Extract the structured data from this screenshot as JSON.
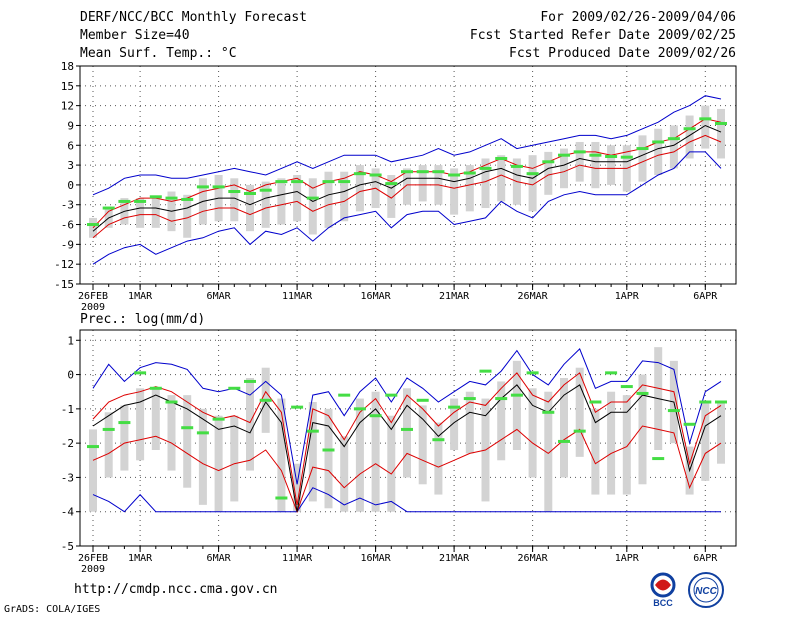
{
  "header": {
    "title": "DERF/NCC/BCC Monthly Forecast",
    "member": "Member Size=40",
    "variable": "Mean Surf. Temp.: °C",
    "period": "For 2009/02/26-2009/04/06",
    "refer": "Fcst Started Refer Date 2009/02/25",
    "produced": "Fcst Produced Date 2009/02/26"
  },
  "footer": {
    "url": "http://cmdp.ncc.cma.gov.cn",
    "grads": "GrADS: COLA/IGES",
    "logo_bcc": "BCC",
    "logo_ncc": "NCC"
  },
  "colors": {
    "max_line": "#0000cc",
    "min_line": "#0000cc",
    "upper_line": "#dd0000",
    "lower_line": "#dd0000",
    "mean_line": "#000000",
    "box": "#d3d3d3",
    "obs": "#44dd44",
    "grid": "#555555"
  },
  "chart_data": [
    {
      "type": "line",
      "title": "Mean Surf. Temp.: °C",
      "ylim": [
        -15,
        18
      ],
      "yticks": [
        -15,
        -12,
        -9,
        -6,
        -3,
        0,
        3,
        6,
        9,
        12,
        15,
        18
      ],
      "xticks": [
        {
          "day": 0,
          "label": "26FEB",
          "sub": "2009"
        },
        {
          "day": 3,
          "label": "1MAR"
        },
        {
          "day": 8,
          "label": "6MAR"
        },
        {
          "day": 13,
          "label": "11MAR"
        },
        {
          "day": 18,
          "label": "16MAR"
        },
        {
          "day": 23,
          "label": "21MAR"
        },
        {
          "day": 28,
          "label": "26MAR"
        },
        {
          "day": 34,
          "label": "1APR"
        },
        {
          "day": 39,
          "label": "6APR"
        }
      ],
      "series": {
        "max": [
          -1.5,
          -0.5,
          1.0,
          1.5,
          1.5,
          1.0,
          1.0,
          1.5,
          2.0,
          2.5,
          2.0,
          1.5,
          2.5,
          3.5,
          2.5,
          3.5,
          4.5,
          4.5,
          4.5,
          3.5,
          4.0,
          4.5,
          5.5,
          4.5,
          5.0,
          6.0,
          7.0,
          5.5,
          6.0,
          6.5,
          7.0,
          7.5,
          7.5,
          7.0,
          7.5,
          8.5,
          9.5,
          11.0,
          12.0,
          13.5,
          13.0
        ],
        "upper": [
          -6.5,
          -4.0,
          -3.0,
          -2.0,
          -2.0,
          -2.5,
          -2.0,
          -1.0,
          -0.5,
          0.0,
          -1.0,
          0.0,
          0.5,
          1.0,
          -0.5,
          0.5,
          1.0,
          2.0,
          1.5,
          0.5,
          2.0,
          2.0,
          2.0,
          1.5,
          2.0,
          3.0,
          4.0,
          3.0,
          2.5,
          3.5,
          4.5,
          5.0,
          5.0,
          4.5,
          5.0,
          5.5,
          6.5,
          7.0,
          8.5,
          10.0,
          9.5
        ],
        "mean": [
          -7.0,
          -5.0,
          -4.0,
          -3.5,
          -3.5,
          -4.0,
          -3.5,
          -2.5,
          -2.0,
          -2.0,
          -3.0,
          -2.0,
          -1.5,
          -1.0,
          -2.5,
          -1.5,
          -1.0,
          0.0,
          0.5,
          -0.5,
          1.0,
          1.0,
          1.0,
          0.5,
          1.0,
          2.0,
          2.5,
          1.5,
          1.0,
          2.5,
          3.0,
          4.0,
          3.5,
          3.5,
          3.5,
          4.5,
          5.5,
          6.0,
          7.5,
          9.0,
          8.0
        ],
        "lower": [
          -8.0,
          -6.0,
          -5.0,
          -4.5,
          -4.5,
          -5.5,
          -5.0,
          -4.0,
          -3.5,
          -3.5,
          -4.5,
          -3.5,
          -3.0,
          -2.5,
          -4.0,
          -3.0,
          -2.5,
          -1.0,
          -0.5,
          -2.0,
          0.0,
          0.0,
          0.0,
          -0.5,
          0.0,
          0.5,
          1.5,
          0.5,
          0.0,
          1.5,
          2.0,
          3.0,
          2.5,
          2.5,
          2.5,
          3.5,
          4.5,
          5.0,
          6.5,
          7.5,
          6.5
        ],
        "min": [
          -12.0,
          -10.5,
          -9.5,
          -9.0,
          -10.5,
          -9.5,
          -8.5,
          -8.0,
          -7.0,
          -6.5,
          -9.0,
          -7.0,
          -7.5,
          -6.5,
          -8.5,
          -6.5,
          -5.0,
          -4.5,
          -4.0,
          -6.5,
          -4.5,
          -4.0,
          -4.0,
          -6.0,
          -5.5,
          -5.0,
          -2.5,
          -4.0,
          -5.0,
          -2.5,
          -1.5,
          -1.0,
          -1.5,
          -1.5,
          -1.5,
          0.0,
          1.5,
          2.5,
          5.0,
          5.0,
          2.5
        ],
        "box_top": [
          -5.0,
          -3.5,
          -2.0,
          -2.0,
          -2.0,
          -1.0,
          -1.5,
          1.0,
          1.5,
          1.0,
          0.0,
          0.5,
          1.0,
          1.5,
          1.0,
          2.0,
          2.0,
          3.0,
          2.5,
          1.5,
          2.5,
          3.0,
          3.0,
          2.5,
          3.0,
          4.0,
          4.5,
          4.0,
          4.5,
          5.0,
          5.5,
          6.5,
          6.5,
          6.0,
          6.0,
          7.5,
          8.5,
          9.0,
          10.5,
          12.0,
          11.5
        ],
        "box_bottom": [
          -8.0,
          -6.5,
          -6.0,
          -6.5,
          -6.5,
          -7.0,
          -8.0,
          -6.0,
          -5.5,
          -5.5,
          -7.0,
          -6.5,
          -6.0,
          -5.5,
          -7.5,
          -6.5,
          -5.5,
          -4.0,
          -3.5,
          -5.0,
          -3.0,
          -2.5,
          -3.0,
          -4.5,
          -4.0,
          -3.5,
          -2.5,
          -3.0,
          -4.0,
          -1.5,
          -0.5,
          0.5,
          -0.5,
          0.0,
          -1.0,
          0.5,
          1.5,
          2.5,
          4.0,
          5.5,
          4.0
        ],
        "obs": [
          -6.0,
          -3.5,
          -2.5,
          -2.5,
          -1.8,
          -2.0,
          -2.2,
          -0.3,
          -0.3,
          -1.0,
          -1.3,
          -0.8,
          0.5,
          0.5,
          -2.0,
          0.5,
          0.5,
          1.7,
          1.5,
          0.2,
          2.0,
          2.0,
          2.0,
          1.5,
          1.8,
          2.5,
          4.0,
          2.8,
          1.7,
          3.5,
          4.5,
          5.0,
          4.5,
          4.3,
          4.2,
          5.5,
          6.5,
          7.0,
          8.5,
          10.0,
          9.3
        ]
      }
    },
    {
      "type": "line",
      "title": "Prec.: log(mm/d)",
      "ylim": [
        -5,
        1.3
      ],
      "yticks": [
        -5,
        -4,
        -3,
        -2,
        -1,
        0,
        1
      ],
      "xticks": [
        {
          "day": 0,
          "label": "26FEB",
          "sub": "2009"
        },
        {
          "day": 3,
          "label": "1MAR"
        },
        {
          "day": 8,
          "label": "6MAR"
        },
        {
          "day": 13,
          "label": "11MAR"
        },
        {
          "day": 18,
          "label": "16MAR"
        },
        {
          "day": 23,
          "label": "21MAR"
        },
        {
          "day": 28,
          "label": "26MAR"
        },
        {
          "day": 34,
          "label": "1APR"
        },
        {
          "day": 39,
          "label": "6APR"
        }
      ],
      "series": {
        "max": [
          -0.4,
          0.3,
          -0.2,
          0.2,
          0.35,
          0.3,
          0.15,
          -0.4,
          -0.5,
          -0.4,
          -0.6,
          -0.2,
          -0.6,
          -3.2,
          -0.6,
          -0.5,
          -1.2,
          -0.5,
          -0.1,
          -0.8,
          -0.1,
          -0.4,
          -0.8,
          -0.5,
          -0.2,
          -0.3,
          0.1,
          0.7,
          0.0,
          -0.3,
          0.3,
          0.75,
          -0.4,
          -0.2,
          -0.2,
          0.4,
          0.35,
          0.15,
          -2.0,
          -0.5,
          -0.2
        ],
        "upper": [
          -1.3,
          -0.8,
          -0.6,
          -0.5,
          -0.35,
          -0.5,
          -0.8,
          -1.1,
          -1.3,
          -1.2,
          -1.4,
          -0.5,
          -1.1,
          -3.8,
          -1.0,
          -1.2,
          -1.9,
          -1.1,
          -0.7,
          -1.4,
          -0.6,
          -1.0,
          -1.5,
          -1.1,
          -0.8,
          -0.9,
          -0.4,
          0.05,
          -0.6,
          -0.8,
          -0.3,
          0.05,
          -1.1,
          -0.8,
          -0.8,
          -0.3,
          -0.4,
          -0.5,
          -2.6,
          -1.2,
          -0.9
        ],
        "mean": [
          -1.5,
          -1.2,
          -0.9,
          -0.8,
          -0.6,
          -0.8,
          -1.0,
          -1.3,
          -1.6,
          -1.5,
          -1.7,
          -0.8,
          -1.4,
          -4.0,
          -1.4,
          -1.5,
          -2.1,
          -1.4,
          -1.0,
          -1.6,
          -0.9,
          -1.3,
          -1.8,
          -1.4,
          -1.1,
          -1.2,
          -0.7,
          -0.3,
          -0.9,
          -1.1,
          -0.6,
          -0.3,
          -1.4,
          -1.1,
          -1.1,
          -0.6,
          -0.7,
          -0.8,
          -2.8,
          -1.5,
          -1.2
        ],
        "lower": [
          -2.5,
          -2.3,
          -2.0,
          -1.9,
          -1.8,
          -2.0,
          -2.3,
          -2.6,
          -2.8,
          -2.6,
          -2.5,
          -2.2,
          -2.8,
          -4.0,
          -2.7,
          -2.8,
          -3.3,
          -2.9,
          -2.6,
          -2.9,
          -2.3,
          -2.5,
          -2.7,
          -2.5,
          -2.3,
          -2.2,
          -1.9,
          -1.6,
          -2.0,
          -2.3,
          -1.9,
          -1.6,
          -2.6,
          -2.3,
          -2.1,
          -1.5,
          -1.6,
          -1.7,
          -3.3,
          -2.3,
          -2.0
        ],
        "min": [
          -3.5,
          -3.7,
          -4.0,
          -3.5,
          -4.0,
          -4.0,
          -4.0,
          -4.0,
          -4.0,
          -4.0,
          -4.0,
          -4.0,
          -4.0,
          -4.0,
          -3.3,
          -3.5,
          -3.8,
          -3.6,
          -3.8,
          -3.7,
          -4.0,
          -4.0,
          -4.0,
          -4.0,
          -4.0,
          -4.0,
          -4.0,
          -4.0,
          -4.0,
          -4.0,
          -4.0,
          -4.0,
          -4.0,
          -4.0,
          -4.0,
          -4.0,
          -4.0,
          -4.0,
          -4.0,
          -4.0,
          -4.0
        ],
        "box_top": [
          -1.6,
          -1.1,
          -0.9,
          -0.4,
          -0.4,
          -0.6,
          -0.6,
          -1.0,
          -1.2,
          -1.2,
          -0.1,
          0.2,
          -0.7,
          -2.6,
          -0.8,
          -1.0,
          -1.8,
          -0.7,
          -0.5,
          -1.2,
          -0.4,
          -0.9,
          -1.4,
          -0.7,
          -0.5,
          -0.7,
          -0.2,
          0.4,
          -0.4,
          -0.5,
          -0.1,
          0.2,
          -1.0,
          -0.5,
          -0.6,
          0.0,
          0.8,
          0.4,
          -2.1,
          -0.8,
          -0.8
        ],
        "box_bottom": [
          -4.0,
          -3.0,
          -2.8,
          -2.5,
          -2.2,
          -2.8,
          -3.3,
          -3.8,
          -4.0,
          -3.7,
          -2.8,
          -1.7,
          -4.0,
          -4.0,
          -3.7,
          -3.9,
          -4.0,
          -4.0,
          -4.0,
          -4.0,
          -3.0,
          -3.2,
          -3.5,
          -2.2,
          -2.3,
          -3.7,
          -2.5,
          -2.2,
          -3.0,
          -4.0,
          -3.0,
          -2.4,
          -3.5,
          -3.5,
          -3.5,
          -3.2,
          -2.2,
          -2.0,
          -3.5,
          -3.1,
          -2.6
        ],
        "obs": [
          -2.1,
          -1.6,
          -1.4,
          0.05,
          -0.4,
          -0.8,
          -1.55,
          -1.7,
          -1.3,
          -0.4,
          -0.2,
          -0.75,
          -3.6,
          -0.95,
          -1.65,
          -2.2,
          -0.6,
          -1.0,
          -1.2,
          -0.6,
          -1.6,
          -0.75,
          -1.9,
          -0.95,
          -0.7,
          0.1,
          -0.7,
          -0.6,
          0.05,
          -1.1,
          -1.95,
          -1.65,
          -0.8,
          0.05,
          -0.35,
          -0.55,
          -2.45,
          -1.05,
          -1.45,
          -0.8,
          -0.8
        ]
      }
    }
  ]
}
